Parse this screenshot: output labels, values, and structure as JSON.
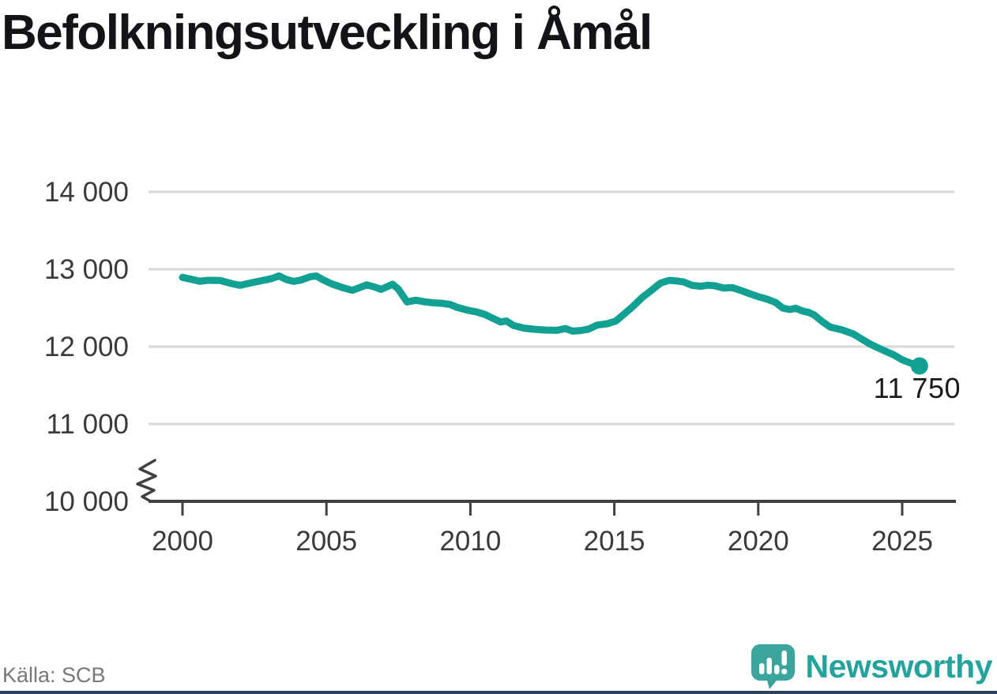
{
  "header": {
    "title": "Befolkningsutveckling i Åmål",
    "title_color": "#121417"
  },
  "chart_data": {
    "type": "line",
    "title": "Befolkningsutveckling i Åmål",
    "xlabel": "",
    "ylabel": "",
    "ylim": [
      10000,
      14000
    ],
    "axis_break_at_bottom": true,
    "grid": "horizontal",
    "legend": "none",
    "line_color": "#12a092",
    "axis_color": "#3f4042",
    "gridline_color": "#d9d9d9",
    "tick_label_color": "#3a3a3c",
    "y_ticks": [
      {
        "label": "14 000",
        "value": 14000
      },
      {
        "label": "13 000",
        "value": 13000
      },
      {
        "label": "12 000",
        "value": 12000
      },
      {
        "label": "11 000",
        "value": 11000
      },
      {
        "label": "10 000",
        "value": 10000
      }
    ],
    "x_ticks": [
      {
        "label": "2000",
        "year": 2000
      },
      {
        "label": "2005",
        "year": 2005
      },
      {
        "label": "2010",
        "year": 2010
      },
      {
        "label": "2015",
        "year": 2015
      },
      {
        "label": "2020",
        "year": 2020
      },
      {
        "label": "2025",
        "year": 2025
      }
    ],
    "series": [
      {
        "name": "Befolkning i Åmål",
        "color": "#12a092",
        "points": [
          [
            2000.0,
            12895
          ],
          [
            2000.3,
            12870
          ],
          [
            2000.6,
            12845
          ],
          [
            2000.9,
            12857
          ],
          [
            2001.3,
            12855
          ],
          [
            2001.7,
            12815
          ],
          [
            2002.0,
            12792
          ],
          [
            2002.4,
            12825
          ],
          [
            2002.8,
            12856
          ],
          [
            2003.1,
            12880
          ],
          [
            2003.35,
            12913
          ],
          [
            2003.6,
            12868
          ],
          [
            2003.85,
            12843
          ],
          [
            2004.1,
            12858
          ],
          [
            2004.45,
            12905
          ],
          [
            2004.65,
            12912
          ],
          [
            2004.9,
            12860
          ],
          [
            2005.2,
            12808
          ],
          [
            2005.6,
            12758
          ],
          [
            2005.9,
            12728
          ],
          [
            2006.15,
            12762
          ],
          [
            2006.4,
            12798
          ],
          [
            2006.65,
            12772
          ],
          [
            2006.9,
            12740
          ],
          [
            2007.1,
            12772
          ],
          [
            2007.3,
            12806
          ],
          [
            2007.5,
            12742
          ],
          [
            2007.8,
            12578
          ],
          [
            2008.1,
            12600
          ],
          [
            2008.4,
            12580
          ],
          [
            2008.7,
            12566
          ],
          [
            2009.0,
            12560
          ],
          [
            2009.3,
            12544
          ],
          [
            2009.55,
            12506
          ],
          [
            2009.9,
            12470
          ],
          [
            2010.2,
            12450
          ],
          [
            2010.5,
            12416
          ],
          [
            2010.8,
            12362
          ],
          [
            2011.05,
            12318
          ],
          [
            2011.25,
            12332
          ],
          [
            2011.5,
            12272
          ],
          [
            2011.85,
            12240
          ],
          [
            2012.2,
            12224
          ],
          [
            2012.6,
            12214
          ],
          [
            2013.0,
            12210
          ],
          [
            2013.3,
            12234
          ],
          [
            2013.55,
            12200
          ],
          [
            2013.8,
            12206
          ],
          [
            2014.1,
            12226
          ],
          [
            2014.4,
            12278
          ],
          [
            2014.75,
            12295
          ],
          [
            2015.05,
            12330
          ],
          [
            2015.35,
            12425
          ],
          [
            2015.65,
            12520
          ],
          [
            2016.0,
            12645
          ],
          [
            2016.3,
            12730
          ],
          [
            2016.6,
            12820
          ],
          [
            2016.9,
            12856
          ],
          [
            2017.15,
            12850
          ],
          [
            2017.4,
            12836
          ],
          [
            2017.7,
            12792
          ],
          [
            2018.0,
            12780
          ],
          [
            2018.25,
            12794
          ],
          [
            2018.5,
            12786
          ],
          [
            2018.8,
            12756
          ],
          [
            2019.1,
            12762
          ],
          [
            2019.4,
            12726
          ],
          [
            2019.7,
            12684
          ],
          [
            2020.0,
            12645
          ],
          [
            2020.3,
            12614
          ],
          [
            2020.6,
            12570
          ],
          [
            2020.85,
            12498
          ],
          [
            2021.1,
            12480
          ],
          [
            2021.3,
            12496
          ],
          [
            2021.55,
            12458
          ],
          [
            2021.75,
            12442
          ],
          [
            2021.95,
            12408
          ],
          [
            2022.2,
            12330
          ],
          [
            2022.5,
            12252
          ],
          [
            2022.9,
            12216
          ],
          [
            2023.3,
            12164
          ],
          [
            2023.6,
            12096
          ],
          [
            2023.9,
            12030
          ],
          [
            2024.3,
            11960
          ],
          [
            2024.7,
            11894
          ],
          [
            2025.0,
            11830
          ],
          [
            2025.3,
            11786
          ],
          [
            2025.6,
            11750
          ]
        ]
      }
    ],
    "end_dot": true,
    "annotation": {
      "text": "11 750",
      "value": 11750
    }
  },
  "footer": {
    "source": "Källa: SCB",
    "brand": "Newsworthy",
    "brand_color": "#23a39c",
    "brand_icon": "newsworthy-speech-bubble-bar-chart-icon",
    "brand_icon_color": "#3ba49d",
    "bottom_bar_color": "#2e3f60"
  }
}
